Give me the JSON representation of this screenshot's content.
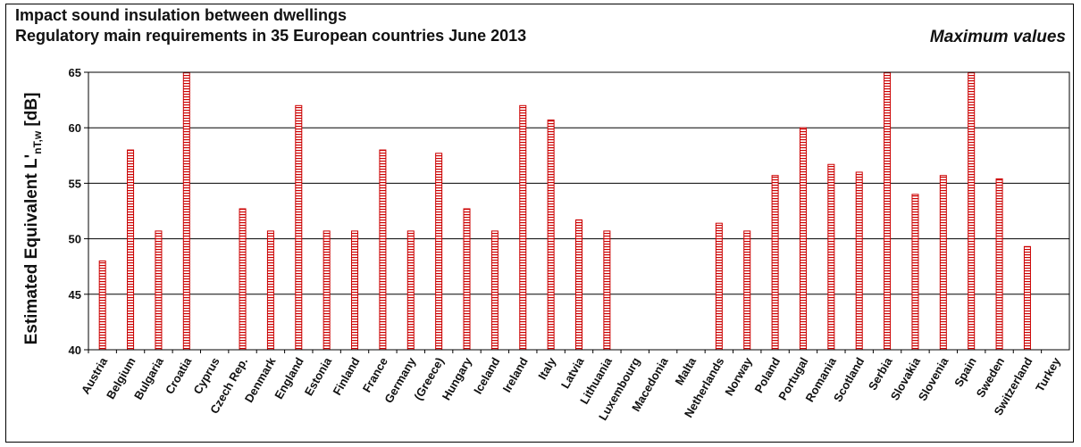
{
  "chart_data": {
    "type": "bar",
    "title": "Impact sound insulation between dwellings",
    "subtitle": "Regulatory main requirements in 35 European countries June 2013",
    "note": "Maximum values",
    "ylabel_main": "Estimated Equivalent L'",
    "ylabel_sub": "nT,w",
    "ylabel_unit": " [dB]",
    "xlabel": "",
    "ylim": [
      40,
      65
    ],
    "yticks": [
      40,
      45,
      50,
      55,
      60,
      65
    ],
    "grid": true,
    "categories": [
      "Austria",
      "Belgium",
      "Bulgaria",
      "Croatia",
      "Cyprus",
      "Czech Rep.",
      "Denmark",
      "England",
      "Estonia",
      "Finland",
      "France",
      "Germany",
      "(Greece)",
      "Hungary",
      "Iceland",
      "Ireland",
      "Italy",
      "Latvia",
      "Lithuania",
      "Luxembourg",
      "Macedonia",
      "Malta",
      "Netherlands",
      "Norway",
      "Poland",
      "Portugal",
      "Romania",
      "Scotland",
      "Serbia",
      "Slovakia",
      "Slovenia",
      "Spain",
      "Sweden",
      "Switzerland",
      "Turkey"
    ],
    "values": [
      48,
      58,
      50.7,
      65,
      null,
      52.7,
      50.7,
      62,
      50.7,
      50.7,
      58,
      50.7,
      57.7,
      52.7,
      50.7,
      62,
      60.7,
      51.7,
      50.7,
      null,
      null,
      null,
      51.4,
      50.7,
      55.7,
      60,
      56.7,
      56,
      65,
      54,
      55.7,
      65,
      55.4,
      49.3,
      null
    ],
    "bar_color": "#cc0000",
    "bar_fill": "#ffffff"
  }
}
